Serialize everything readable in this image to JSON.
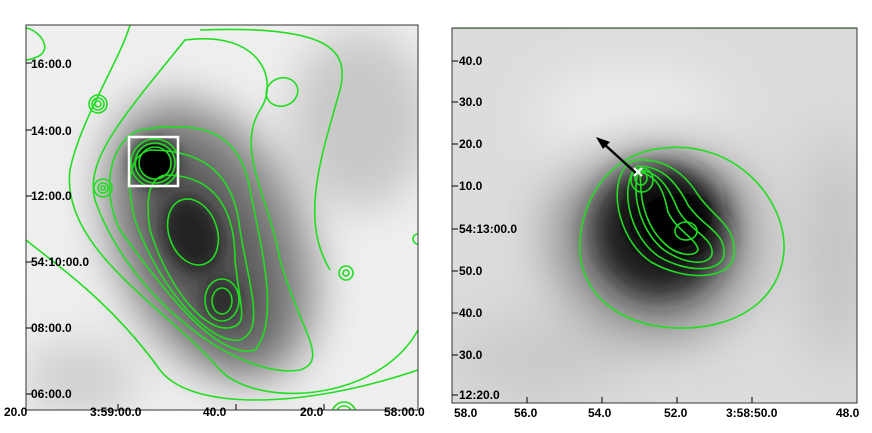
{
  "left_panel": {
    "y_ticks": [
      "16:00.0",
      "14:00.0",
      "12:00.0",
      "54:10:00.0",
      "08:00.0",
      "06:00.0"
    ],
    "x_ticks": [
      "20.0",
      "3:59:00.0",
      "40.0",
      "20.0",
      "58:00.0"
    ]
  },
  "right_panel": {
    "y_ticks": [
      "40.0",
      "30.0",
      "20.0",
      "10.0",
      "54:13:00.0",
      "50.0",
      "40.0",
      "30.0",
      "12:20.0"
    ],
    "x_ticks": [
      "58.0",
      "56.0",
      "54.0",
      "52.0",
      "3:58:50.0",
      "48.0"
    ]
  },
  "colors": {
    "contour": "#22dd22",
    "box": "#ffffff",
    "arrow": "#000000"
  }
}
